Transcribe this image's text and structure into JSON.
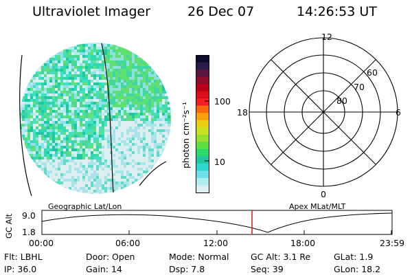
{
  "header": {
    "instrument": "Ultraviolet Imager",
    "date": "26 Dec 07",
    "time": "14:26:53 UT"
  },
  "colorbar": {
    "unit_label": "photon cm⁻²s⁻¹",
    "tick_labels": [
      "100",
      "10"
    ],
    "colors": [
      "#0d0b2a",
      "#2a1b4a",
      "#5a1440",
      "#8c0d2a",
      "#b8001a",
      "#d8101a",
      "#f02020",
      "#f86a10",
      "#f8a010",
      "#e8d010",
      "#c8e020",
      "#98e030",
      "#60e040",
      "#30d870",
      "#20c8a0",
      "#30d8d0",
      "#70e0e8",
      "#b0ecf0",
      "#dceef0"
    ]
  },
  "polar_plot": {
    "mlt_labels": [
      "12",
      "18",
      "6",
      "0"
    ],
    "mlat_labels": [
      "60",
      "70",
      "80"
    ]
  },
  "orbit": {
    "left_caption": "Geographic Lat/Lon",
    "right_caption": "Apex  MLat/MLT",
    "yaxis_label": "GC Alt",
    "y_ticks": [
      "9.0",
      "1.8"
    ],
    "time_ticks": [
      "00:00",
      "06:00",
      "12:00",
      "18:00",
      "23:59"
    ],
    "current_time_marker": "14:26"
  },
  "status": {
    "filter_label": "Flt:",
    "filter_value": "LBHL",
    "ip_label": "IP:",
    "ip_value": "36.0",
    "door_label": "Door:",
    "door_value": "Open",
    "gain_label": "Gain:",
    "gain_value": "14",
    "mode_label": "Mode:",
    "mode_value": "Normal",
    "dsp_label": "Dsp:",
    "dsp_value": "7.8",
    "gcalt_label": "GC Alt:",
    "gcalt_value": "3.1 Re",
    "seq_label": "Seq:",
    "seq_value": "39",
    "glat_label": "GLat:",
    "glat_value": "1.9",
    "glon_label": "GLon:",
    "glon_value": "18.2"
  }
}
